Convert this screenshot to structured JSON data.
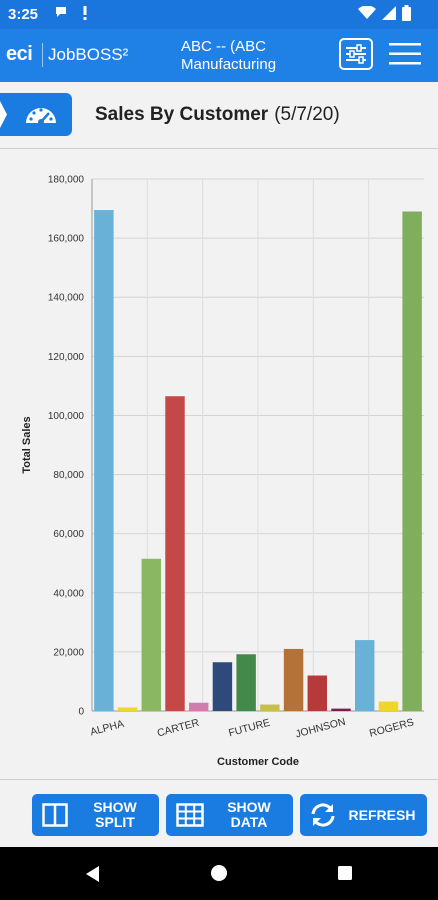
{
  "status_bar": {
    "time": "3:25"
  },
  "app_bar": {
    "brand": "eci",
    "product": "JobBOSS²",
    "company_line1": "ABC -- (ABC",
    "company_line2": "Manufacturing"
  },
  "page": {
    "title": "Sales By Customer",
    "date": "(5/7/20)"
  },
  "chart_data": {
    "type": "bar",
    "xlabel": "Customer Code",
    "ylabel": "Total Sales",
    "ylim": [
      0,
      180000
    ],
    "y_ticks": [
      "0",
      "20,000",
      "40,000",
      "60,000",
      "80,000",
      "100,000",
      "120,000",
      "140,000",
      "160,000",
      "180,000"
    ],
    "x_tick_labels": [
      "ALPHA",
      "CARTER",
      "FUTURE",
      "JOHNSON",
      "ROGERS"
    ],
    "bars": [
      {
        "value": 169500,
        "color": "#6ab1d8"
      },
      {
        "value": 1200,
        "color": "#f2d52c"
      },
      {
        "value": 51500,
        "color": "#8ab862"
      },
      {
        "value": 106500,
        "color": "#c54848"
      },
      {
        "value": 2800,
        "color": "#d27cb0"
      },
      {
        "value": 16500,
        "color": "#2e4a7a"
      },
      {
        "value": 19200,
        "color": "#43894a"
      },
      {
        "value": 2200,
        "color": "#c6c04a"
      },
      {
        "value": 21000,
        "color": "#b57238"
      },
      {
        "value": 12000,
        "color": "#b63a3a"
      },
      {
        "value": 800,
        "color": "#7a1e4e"
      },
      {
        "value": 24000,
        "color": "#6ab1d8"
      },
      {
        "value": 3200,
        "color": "#f2d52c"
      },
      {
        "value": 169000,
        "color": "#7fae5c"
      }
    ]
  },
  "actions": {
    "show_split_1": "SHOW",
    "show_split_2": "SPLIT",
    "show_data_1": "SHOW",
    "show_data_2": "DATA",
    "refresh": "REFRESH"
  }
}
